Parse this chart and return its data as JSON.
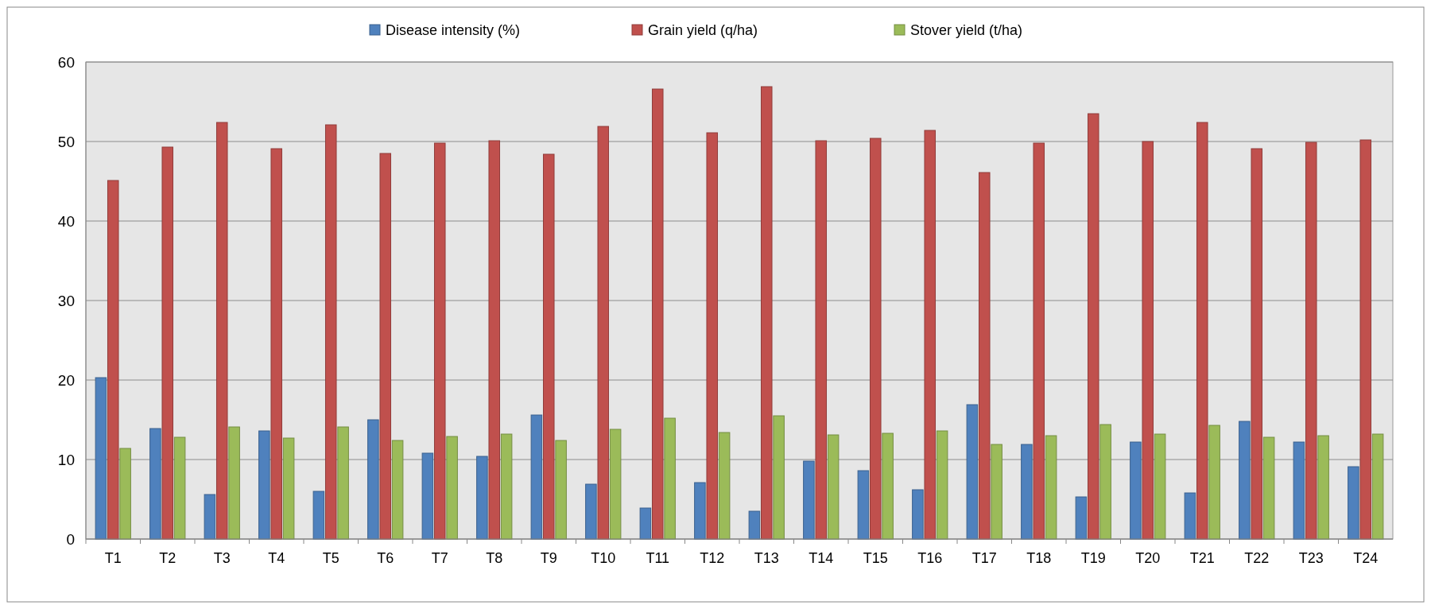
{
  "chart_data": {
    "type": "bar",
    "categories": [
      "T1",
      "T2",
      "T3",
      "T4",
      "T5",
      "T6",
      "T7",
      "T8",
      "T9",
      "T10",
      "T11",
      "T12",
      "T13",
      "T14",
      "T15",
      "T16",
      "T17",
      "T18",
      "T19",
      "T20",
      "T21",
      "T22",
      "T23",
      "T24"
    ],
    "series": [
      {
        "name": "Disease intensity (%)",
        "color": "#4f81bd",
        "values": [
          20.3,
          13.9,
          5.6,
          13.6,
          6.0,
          15.0,
          10.8,
          10.4,
          15.6,
          6.9,
          3.9,
          7.1,
          3.5,
          9.8,
          8.6,
          6.2,
          16.9,
          11.9,
          5.3,
          12.2,
          5.8,
          14.8,
          12.2,
          9.1
        ]
      },
      {
        "name": "Grain yield (q/ha)",
        "color": "#c0504d",
        "values": [
          45.1,
          49.3,
          52.4,
          49.1,
          52.1,
          48.5,
          49.8,
          50.1,
          48.4,
          51.9,
          56.6,
          51.1,
          56.9,
          50.1,
          50.4,
          51.4,
          46.1,
          49.8,
          53.5,
          50.0,
          52.4,
          49.1,
          49.9,
          50.2
        ]
      },
      {
        "name": "Stover yield (t/ha)",
        "color": "#9bbb59",
        "values": [
          11.4,
          12.8,
          14.1,
          12.7,
          14.1,
          12.4,
          12.9,
          13.2,
          12.4,
          13.8,
          15.2,
          13.4,
          15.5,
          13.1,
          13.3,
          13.6,
          11.9,
          13.0,
          14.4,
          13.2,
          14.3,
          12.8,
          13.0,
          13.2
        ]
      }
    ],
    "ylim": [
      0,
      60
    ],
    "yticks": [
      0,
      10,
      20,
      30,
      40,
      50,
      60
    ],
    "grid": "y",
    "legend": "top"
  }
}
